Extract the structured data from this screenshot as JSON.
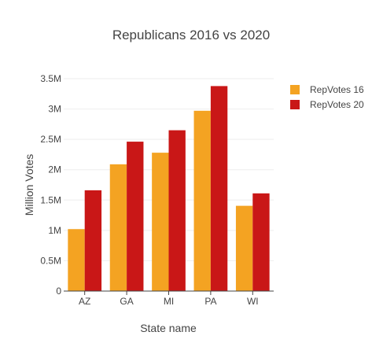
{
  "chart_data": {
    "type": "bar",
    "title": "Republicans 2016 vs 2020",
    "xlabel": "State name",
    "ylabel": "Million Votes",
    "categories": [
      "AZ",
      "GA",
      "MI",
      "PA",
      "WI"
    ],
    "series": [
      {
        "name": "RepVotes 16",
        "color": "#f4a322",
        "values": [
          1021000,
          2089000,
          2280000,
          2971000,
          1405000
        ]
      },
      {
        "name": "RepVotes 20",
        "color": "#c91717",
        "values": [
          1661000,
          2462000,
          2650000,
          3378000,
          1610000
        ]
      }
    ],
    "ylim": [
      0,
      3500000
    ],
    "yticks": [
      0,
      500000,
      1000000,
      1500000,
      2000000,
      2500000,
      3000000,
      3500000
    ],
    "ytick_labels": [
      "0",
      "0.5M",
      "1M",
      "1.5M",
      "2M",
      "2.5M",
      "3M",
      "3.5M"
    ],
    "grid": true,
    "legend_position": "top-right"
  }
}
